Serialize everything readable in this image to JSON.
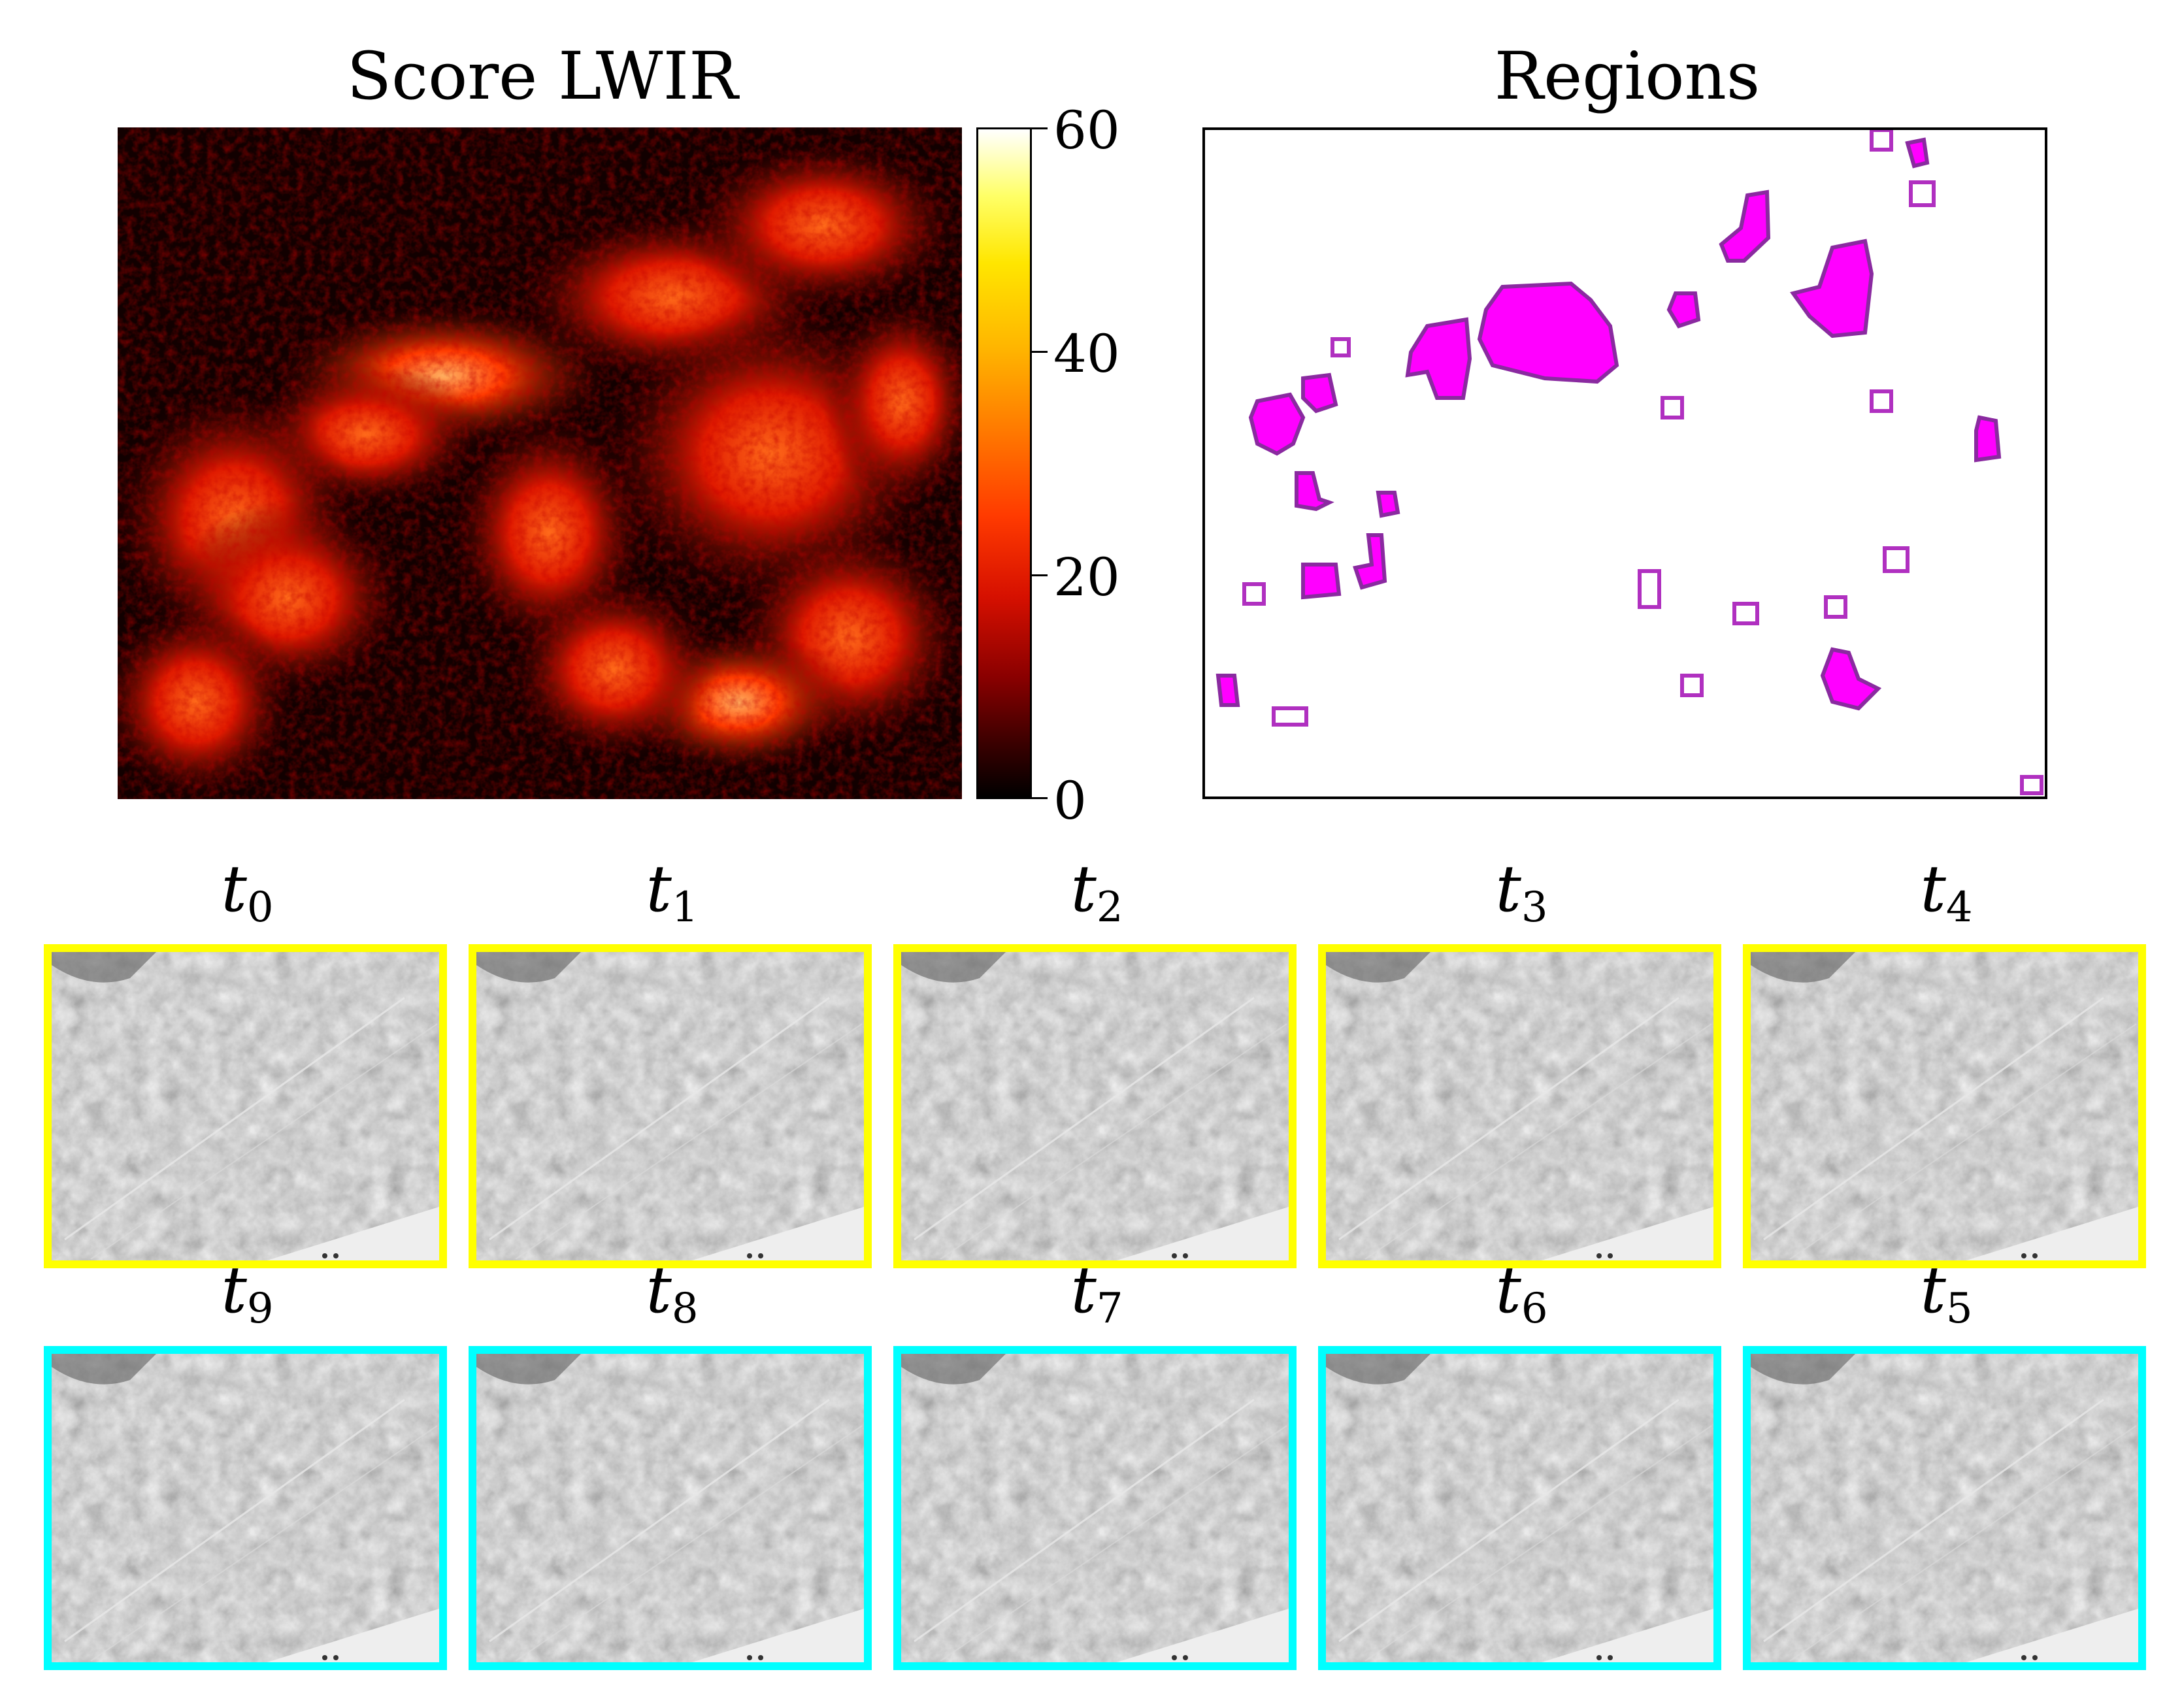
{
  "chart_data": [
    {
      "type": "heatmap",
      "title": "Score LWIR",
      "colormap": "hot",
      "colorbar": {
        "min": 0,
        "max": 60,
        "ticks": [
          0,
          20,
          40,
          60
        ]
      },
      "xlabel": "",
      "ylabel": "",
      "grid": false
    },
    {
      "type": "heatmap",
      "title": "Regions",
      "description_values": {
        "region_fill": "#ff00ff",
        "region_outline": "#8a2aa0",
        "background": "#ffffff"
      },
      "grid": false
    }
  ],
  "frames": {
    "top_row": [
      {
        "label": "t",
        "index": "0"
      },
      {
        "label": "t",
        "index": "1"
      },
      {
        "label": "t",
        "index": "2"
      },
      {
        "label": "t",
        "index": "3"
      },
      {
        "label": "t",
        "index": "4"
      }
    ],
    "bottom_row": [
      {
        "label": "t",
        "index": "9"
      },
      {
        "label": "t",
        "index": "8"
      },
      {
        "label": "t",
        "index": "7"
      },
      {
        "label": "t",
        "index": "6"
      },
      {
        "label": "t",
        "index": "5"
      }
    ],
    "top_color": "#ffff00",
    "bottom_color": "#00ffff"
  }
}
